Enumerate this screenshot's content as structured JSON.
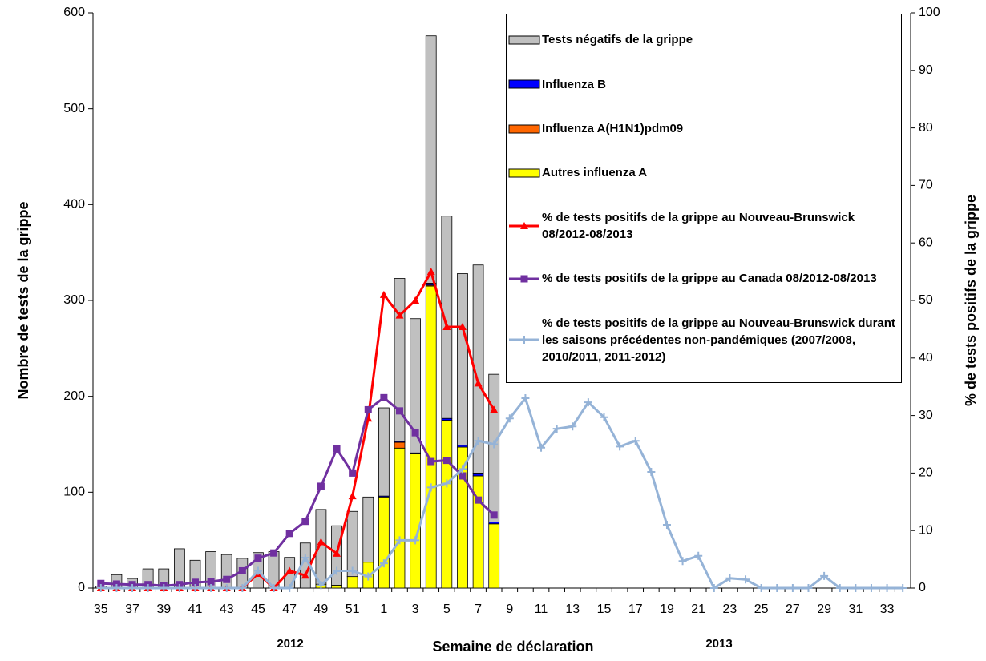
{
  "chart_data": {
    "type": "combo",
    "xlabel": "Semaine de déclaration",
    "ylabel": "Nombre de tests de la grippe",
    "y2label": "% de tests positifs de la grippe",
    "annotations": [
      "2012",
      "2013"
    ],
    "categories": [
      "35",
      null,
      "37",
      null,
      "39",
      null,
      "41",
      null,
      "43",
      null,
      "45",
      null,
      "47",
      null,
      "49",
      null,
      "51",
      null,
      "1",
      null,
      "3",
      null,
      "5",
      null,
      "7",
      null,
      "9",
      null,
      "11",
      null,
      "13",
      null,
      "15",
      null,
      "17",
      null,
      "19",
      null,
      "21",
      null,
      "23",
      null,
      "25",
      null,
      "27",
      null,
      "29",
      null,
      "31",
      null,
      "33",
      null
    ],
    "ylim": [
      0,
      600
    ],
    "yticks": [
      0,
      100,
      200,
      300,
      400,
      500,
      600
    ],
    "y2lim": [
      0,
      100
    ],
    "y2ticks": [
      0,
      10,
      20,
      30,
      40,
      50,
      60,
      70,
      80,
      90,
      100
    ],
    "grid": false,
    "legend": "upper right",
    "series": [
      {
        "name": "Tests négatifs de la grippe",
        "type": "bar",
        "color": "#c0c0c0",
        "values": [
          2,
          14,
          10,
          20,
          20,
          41,
          29,
          38,
          35,
          31,
          37,
          38,
          32,
          47,
          78,
          62,
          68,
          68,
          92,
          170,
          140,
          258,
          211,
          179,
          217,
          154,
          null,
          null,
          null,
          null,
          null,
          null,
          null,
          null,
          null,
          null,
          null,
          null,
          null,
          null,
          null,
          null,
          null,
          null,
          null,
          null,
          null,
          null,
          null,
          null,
          null,
          null
        ]
      },
      {
        "name": "Influenza B",
        "type": "bar",
        "color": "#0000ff",
        "values": [
          0,
          0,
          0,
          0,
          0,
          0,
          0,
          0,
          0,
          0,
          0,
          0,
          0,
          0,
          0,
          0,
          0,
          0,
          1,
          1,
          1,
          2,
          2,
          2,
          3,
          2,
          null,
          null,
          null,
          null,
          null,
          null,
          null,
          null,
          null,
          null,
          null,
          null,
          null,
          null,
          null,
          null,
          null,
          null,
          null,
          null,
          null,
          null,
          null,
          null,
          null,
          null
        ]
      },
      {
        "name": "Influenza A(H1N1)pdm09",
        "type": "bar",
        "color": "#ff6600",
        "values": [
          0,
          0,
          0,
          0,
          0,
          0,
          0,
          0,
          0,
          0,
          0,
          0,
          0,
          0,
          0,
          0,
          0,
          0,
          0,
          6,
          0,
          1,
          0,
          0,
          0,
          0,
          null,
          null,
          null,
          null,
          null,
          null,
          null,
          null,
          null,
          null,
          null,
          null,
          null,
          null,
          null,
          null,
          null,
          null,
          null,
          null,
          null,
          null,
          null,
          null,
          null,
          null
        ]
      },
      {
        "name": "Autres influenza A",
        "type": "bar",
        "color": "#ffff00",
        "values": [
          0,
          0,
          0,
          0,
          0,
          0,
          0,
          0,
          0,
          0,
          0,
          0,
          0,
          0,
          4,
          3,
          12,
          27,
          95,
          146,
          140,
          315,
          175,
          147,
          117,
          67,
          null,
          null,
          null,
          null,
          null,
          null,
          null,
          null,
          null,
          null,
          null,
          null,
          null,
          null,
          null,
          null,
          null,
          null,
          null,
          null,
          null,
          null,
          null,
          null,
          null,
          null
        ]
      },
      {
        "name": "% de tests positifs de la grippe  au Nouveau-Brunswick 08/2012-08/2013",
        "type": "line",
        "axis": "y2",
        "color": "#ff0000",
        "marker": "triangle",
        "values": [
          0,
          0,
          0,
          0,
          0,
          0,
          0,
          0,
          0,
          0,
          2.5,
          0,
          3,
          2.2,
          8,
          6,
          16,
          29.5,
          51,
          47.4,
          50,
          55,
          45.4,
          45.4,
          35.6,
          31,
          null,
          null,
          null,
          null,
          null,
          null,
          null,
          null,
          null,
          null,
          null,
          null,
          null,
          null,
          null,
          null,
          null,
          null,
          null,
          null,
          null,
          null,
          null,
          null,
          null,
          null
        ]
      },
      {
        "name": "% de tests positifs de la grippe  au Canada 08/2012-08/2013",
        "type": "line",
        "axis": "y2",
        "color": "#7030a0",
        "marker": "square",
        "values": [
          0.8,
          0.7,
          0.6,
          0.6,
          0.4,
          0.6,
          1,
          1.1,
          1.5,
          3,
          5.2,
          6.1,
          9.5,
          11.6,
          17.7,
          24.2,
          20,
          31,
          33.1,
          30.8,
          27,
          22,
          22.2,
          19.5,
          15.3,
          12.7,
          null,
          null,
          null,
          null,
          null,
          null,
          null,
          null,
          null,
          null,
          null,
          null,
          null,
          null,
          null,
          null,
          null,
          null,
          null,
          null,
          null,
          null,
          null,
          null,
          null,
          null
        ]
      },
      {
        "name": "% de tests positifs de la grippe  au Nouveau-Brunswick durant les saisons précédentes non-pandémiques (2007/2008, 2010/2011, 2011-2012)",
        "type": "line",
        "axis": "y2",
        "color": "#95b3d7",
        "marker": "plus",
        "values": [
          0,
          0,
          0,
          0,
          0,
          0,
          0,
          0,
          0,
          0,
          3,
          0,
          0,
          5.3,
          0.5,
          3,
          3,
          2,
          4.3,
          8.3,
          8.3,
          17.5,
          18.2,
          20.7,
          25.6,
          25,
          29.5,
          33,
          24.4,
          27.7,
          28.1,
          32.3,
          29.7,
          24.6,
          25.6,
          20.2,
          11,
          4.7,
          5.6,
          0,
          1.7,
          1.5,
          0,
          0,
          0,
          0,
          2.1,
          0,
          0,
          0,
          0,
          0
        ]
      }
    ]
  }
}
